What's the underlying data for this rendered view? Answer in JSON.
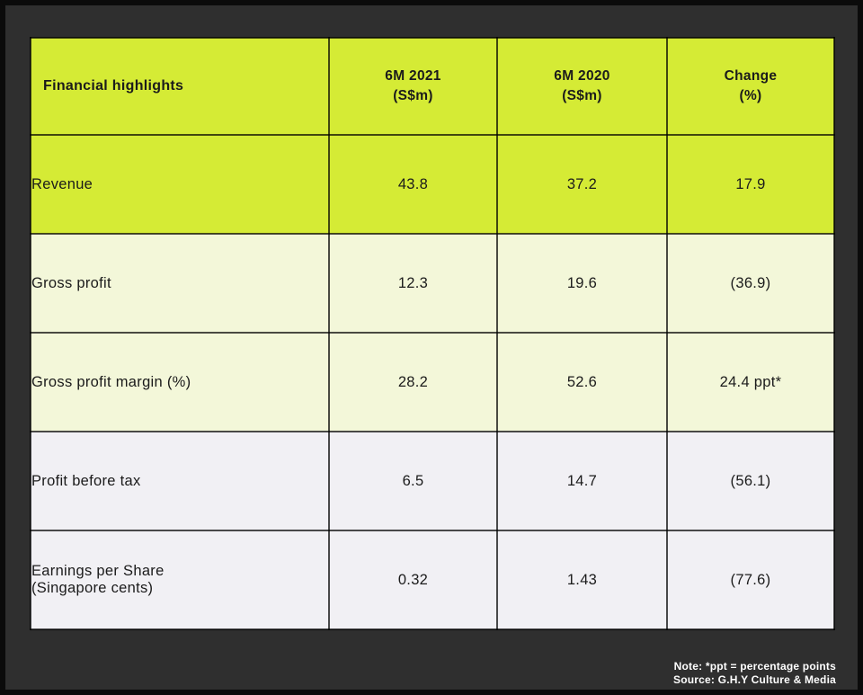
{
  "page": {
    "background_color": "#2f2f2f",
    "frame_color": "#0b0b0b"
  },
  "colors": {
    "accent_green": "#d5eb35",
    "pale_green": "#f3f7d9",
    "pale_gray": "#f1f0f4",
    "text_dark": "#1b1b1b",
    "footer_text": "#ffffff"
  },
  "table": {
    "header": {
      "title": "Financial highlights",
      "columns": [
        {
          "line1": "6M 2021",
          "line2": "(S$m)"
        },
        {
          "line1": "6M 2020",
          "line2": "(S$m)"
        },
        {
          "line1": "Change",
          "line2": "(%)"
        }
      ]
    },
    "rows": [
      {
        "label": "Revenue",
        "label2": "",
        "v2021": "43.8",
        "v2020": "37.2",
        "change": "17.9"
      },
      {
        "label": "Gross profit",
        "label2": "",
        "v2021": "12.3",
        "v2020": "19.6",
        "change": "(36.9)"
      },
      {
        "label": "Gross profit margin (%)",
        "label2": "",
        "v2021": "28.2",
        "v2020": "52.6",
        "change": "24.4 ppt*"
      },
      {
        "label": "Profit before tax",
        "label2": "",
        "v2021": "6.5",
        "v2020": "14.7",
        "change": "(56.1)"
      },
      {
        "label": "Earnings per Share",
        "label2": "(Singapore cents)",
        "v2021": "0.32",
        "v2020": "1.43",
        "change": "(77.6)"
      }
    ]
  },
  "footer": {
    "note": "Note: *ppt = percentage points",
    "source": "Source: G.H.Y Culture & Media"
  },
  "chart_data": {
    "type": "table",
    "title": "Financial highlights",
    "columns": [
      "Financial highlights",
      "6M 2021 (S$m)",
      "6M 2020 (S$m)",
      "Change (%)"
    ],
    "rows": [
      [
        "Revenue",
        "43.8",
        "37.2",
        "17.9"
      ],
      [
        "Gross profit",
        "12.3",
        "19.6",
        "(36.9)"
      ],
      [
        "Gross profit margin (%)",
        "28.2",
        "52.6",
        "24.4 ppt*"
      ],
      [
        "Profit before tax",
        "6.5",
        "14.7",
        "(56.1)"
      ],
      [
        "Earnings per Share (Singapore cents)",
        "0.32",
        "1.43",
        "(77.6)"
      ]
    ],
    "note": "Note: *ppt = percentage points",
    "source": "Source: G.H.Y Culture & Media"
  }
}
